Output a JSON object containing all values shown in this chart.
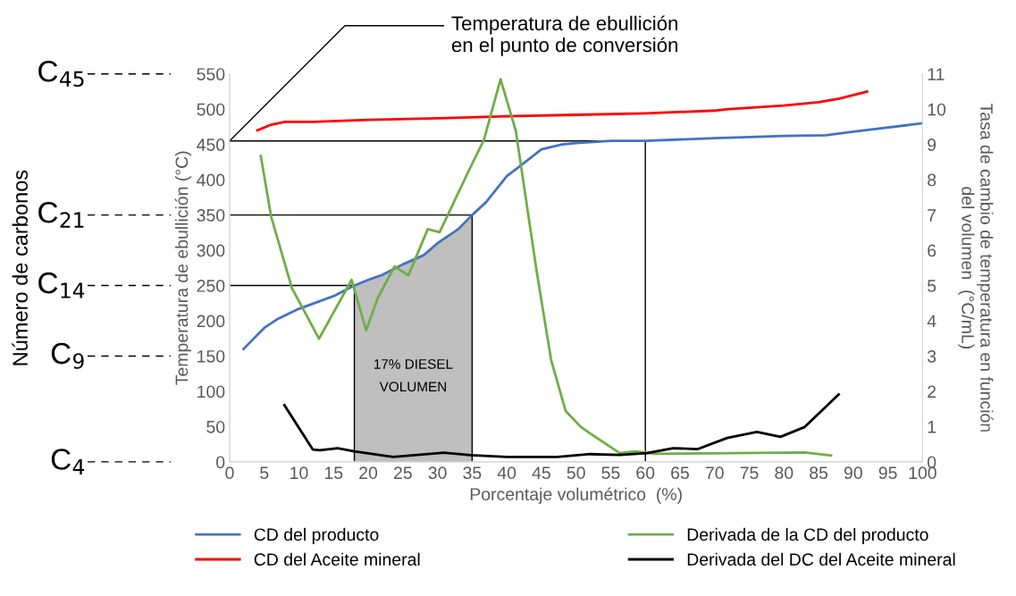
{
  "chart_data": {
    "type": "line",
    "xlabel": "Porcentaje volumétrico  (%)",
    "ylabel": "Temperatura de ebullición (°C)",
    "y2label": "Tasa de cambio de temperatura en función\ndel volumen  (°C/mL)",
    "xlim": [
      0,
      100
    ],
    "xticks": [
      0,
      5,
      10,
      15,
      20,
      25,
      30,
      35,
      40,
      45,
      50,
      55,
      60,
      65,
      70,
      75,
      80,
      85,
      90,
      95,
      100
    ],
    "ylim": [
      0,
      550
    ],
    "yticks": [
      0,
      50,
      100,
      150,
      200,
      250,
      300,
      350,
      400,
      450,
      500,
      550
    ],
    "ref_lines": [
      {
        "axis": "y",
        "value": 550,
        "label": "C$_{45}$",
        "line_style": "dashed",
        "color": "#000000"
      },
      {
        "axis": "y",
        "value": 350,
        "label": "C$_{21}$",
        "line_style": "dashed",
        "color": "#000000"
      },
      {
        "axis": "y",
        "value": 250,
        "label": "C$_{14}$",
        "line_style": "dashed",
        "color": "#000000"
      },
      {
        "axis": "y",
        "value": 150,
        "label": "C$_{9}$",
        "line_style": "dashed",
        "color": "#000000"
      },
      {
        "axis": "y",
        "value": 0,
        "label": "C$_{4}$",
        "line_style": "dashed",
        "color": "#000000"
      }
    ],
    "y2lim": [
      0,
      11
    ],
    "y2ticks": [
      0,
      1,
      2,
      3,
      4,
      5,
      6,
      7,
      8,
      9,
      10,
      11
    ],
    "grid": false,
    "legend": "bottom",
    "marker": "none",
    "line_style": "solid",
    "series": [
      {
        "type": "area",
        "color": "#bfbfbf",
        "x": [
          18,
          20,
          22,
          25,
          28,
          30,
          33,
          35
        ],
        "values": [
          250,
          258,
          265,
          280,
          293,
          310,
          330,
          350
        ]
      },
      {
        "name": "CD del producto",
        "color": "#4472c4",
        "x": [
          2,
          5,
          7,
          10,
          15,
          18,
          20,
          22,
          25,
          28,
          30,
          33,
          35,
          37,
          40,
          42,
          45,
          48,
          50,
          55,
          60,
          70,
          80,
          86,
          90,
          100
        ],
        "values": [
          160,
          190,
          203,
          217,
          235,
          250,
          258,
          265,
          280,
          293,
          310,
          330,
          350,
          368,
          405,
          420,
          443,
          450,
          452,
          455,
          455,
          459,
          462,
          463,
          468,
          480
        ]
      },
      {
        "name": "CD del Aceite mineral",
        "color": "#ff0000",
        "x": [
          4,
          6,
          8,
          12,
          20,
          30,
          40,
          50,
          60,
          70,
          72,
          80,
          85,
          88,
          92
        ],
        "values": [
          470,
          478,
          482,
          482,
          485,
          487,
          490,
          492,
          494,
          498,
          500,
          505,
          510,
          515,
          525
        ]
      },
      {
        "name": "Derivada de la CD del producto",
        "axis": "y2",
        "color": "#70ad47",
        "x": [
          4.5,
          6,
          9,
          10.7,
          12.9,
          17.6,
          19.7,
          21.4,
          23.8,
          25.8,
          28.6,
          30.3,
          34.8,
          36.7,
          39.1,
          41.3,
          44.3,
          46.4,
          48.5,
          50.7,
          52,
          56.3,
          58.5,
          61.4,
          83,
          86.8
        ],
        "values": [
          8.67,
          6.95,
          4.92,
          4.3,
          3.49,
          5.16,
          3.73,
          4.66,
          5.54,
          5.29,
          6.6,
          6.51,
          8.37,
          9.13,
          10.85,
          9.39,
          5.42,
          2.89,
          1.44,
          0.99,
          0.81,
          0.25,
          0.3,
          0.23,
          0.27,
          0.18
        ]
      },
      {
        "name": "Derivada del DC del Aceite mineral",
        "axis": "y2",
        "color": "#000000",
        "x": [
          7.9,
          12,
          13,
          15.6,
          18,
          23.6,
          30.9,
          34.8,
          40,
          47.3,
          52,
          56.3,
          60.2,
          64,
          67.5,
          71.8,
          76.1,
          79.5,
          83,
          87.9
        ],
        "values": [
          1.61,
          0.35,
          0.33,
          0.39,
          0.3,
          0.14,
          0.26,
          0.19,
          0.14,
          0.14,
          0.22,
          0.2,
          0.25,
          0.39,
          0.36,
          0.68,
          0.85,
          0.71,
          0.99,
          1.91
        ]
      },
      {
        "color": "#000000",
        "x": [
          0,
          60,
          60
        ],
        "values": [
          455,
          455,
          0
        ]
      },
      {
        "color": "#000000",
        "x": [
          0,
          35
        ],
        "values": [
          350,
          350
        ]
      },
      {
        "color": "#000000",
        "x": [
          0,
          18
        ],
        "values": [
          250,
          250
        ]
      }
    ],
    "annotations": [
      {
        "text": "Temperatura de ebullición\nen el punto de conversión",
        "x": 0,
        "y": 455
      },
      "17% DIESEL\nVOLUMEN",
      "Número de carbonos"
    ]
  }
}
